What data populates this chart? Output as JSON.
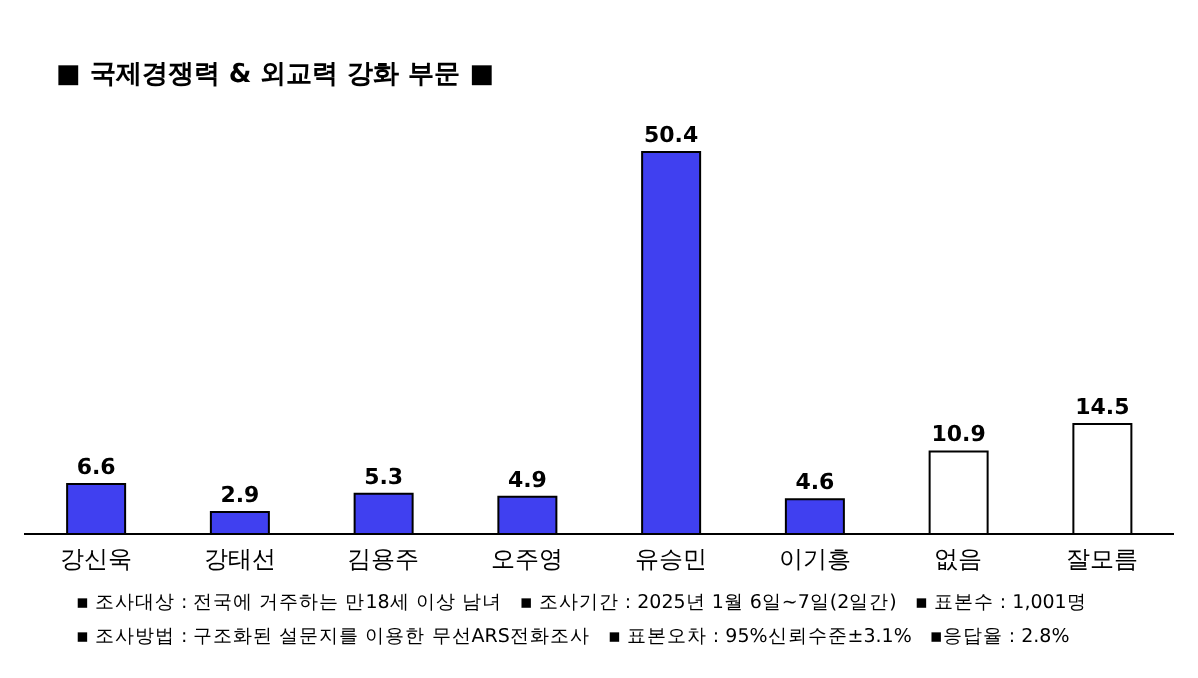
{
  "chart_data": {
    "type": "bar",
    "title": "■ 국제경쟁력 & 외교력 강화 부문 ■",
    "categories": [
      "강신욱",
      "강태선",
      "김용주",
      "오주영",
      "유승민",
      "이기흥",
      "없음",
      "잘모름"
    ],
    "values": [
      6.6,
      2.9,
      5.3,
      4.9,
      50.4,
      4.6,
      10.9,
      14.5
    ],
    "colors": [
      "#4040f0",
      "#4040f0",
      "#4040f0",
      "#4040f0",
      "#4040f0",
      "#4040f0",
      "#ffffff",
      "#ffffff"
    ],
    "data_labels": true,
    "grid": false,
    "legend": false,
    "tick_labels": "x",
    "annotations": [
      "▪ 조사대상 : 전국에 거주하는 만18세 이상 남녀   ▪ 조사기간 : 2025년 1월 6일~7일(2일간)   ▪ 표본수 : 1,001명",
      "▪ 조사방법 : 구조화된 설문지를 이용한 무선ARS전화조사   ▪ 표본오차 : 95%신뢰수준±3.1%   ▪응답율 : 2.8%"
    ]
  }
}
